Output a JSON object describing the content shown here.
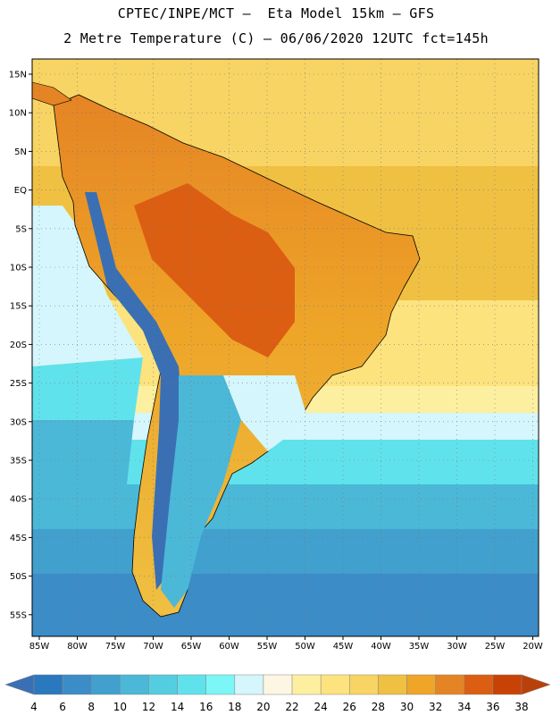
{
  "title_line1": "CPTEC/INPE/MCT –  Eta Model 15km – GFS",
  "title_line2": "2 Metre Temperature (C) – 06/06/2020 12UTC fct=145h",
  "lat_labels": [
    "15N",
    "10N",
    "5N",
    "EQ",
    "5S",
    "10S",
    "15S",
    "20S",
    "25S",
    "30S",
    "35S",
    "40S",
    "45S",
    "50S",
    "55S"
  ],
  "lon_labels": [
    "85W",
    "80W",
    "75W",
    "70W",
    "65W",
    "60W",
    "55W",
    "50W",
    "45W",
    "40W",
    "35W",
    "30W",
    "25W",
    "20W"
  ],
  "colorbar": {
    "levels": [
      "4",
      "6",
      "8",
      "10",
      "12",
      "14",
      "16",
      "18",
      "20",
      "22",
      "24",
      "26",
      "28",
      "30",
      "32",
      "34",
      "36",
      "38"
    ],
    "colors": [
      "#3a6fb4",
      "#2a78be",
      "#3c8cc8",
      "#41a0cd",
      "#4bb8d8",
      "#55cde0",
      "#60e2ec",
      "#7cf6f6",
      "#d4f6fc",
      "#fdf6e3",
      "#fcf0a0",
      "#fce37e",
      "#f7d463",
      "#efc042",
      "#eea528",
      "#e58424",
      "#dc5e12",
      "#c84206",
      "#b8410a"
    ]
  }
}
